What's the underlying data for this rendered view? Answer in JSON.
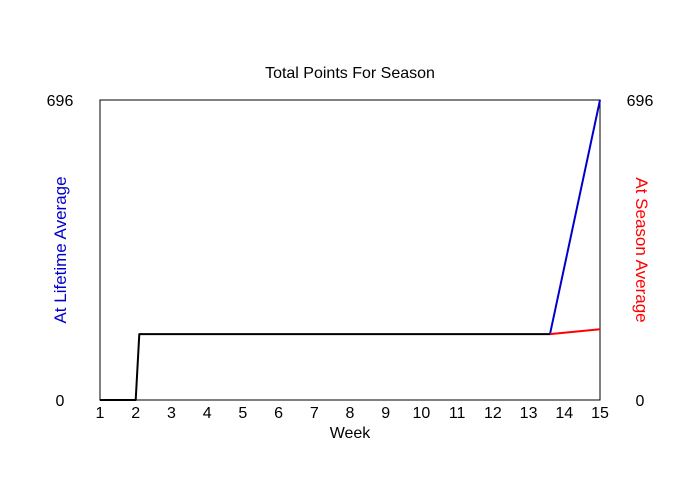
{
  "chart_data": {
    "type": "line",
    "title": "Total Points For Season",
    "xlabel": "Week",
    "ylabel_left": "At Lifetime Average",
    "ylabel_right": "At Season Average",
    "xlim": [
      1,
      15
    ],
    "ylim": [
      0,
      696
    ],
    "x_ticks": [
      "1",
      "2",
      "3",
      "4",
      "5",
      "6",
      "7",
      "8",
      "9",
      "10",
      "11",
      "12",
      "13",
      "14",
      "15"
    ],
    "y_ticks_left": [
      "0",
      "696"
    ],
    "y_ticks_right": [
      "0",
      "696"
    ],
    "grid": false,
    "series": [
      {
        "color": "#000000",
        "points": [
          [
            1,
            0
          ],
          [
            2,
            0
          ],
          [
            2.1,
            153
          ],
          [
            13.6,
            153
          ]
        ]
      },
      {
        "color": "#0000cc",
        "points": [
          [
            13.6,
            153
          ],
          [
            15,
            696
          ]
        ]
      },
      {
        "color": "#ff0000",
        "points": [
          [
            13.6,
            153
          ],
          [
            15,
            164
          ]
        ]
      }
    ],
    "colors": {
      "ylabel_left": "#0000cc",
      "ylabel_right": "#ff0000"
    }
  }
}
